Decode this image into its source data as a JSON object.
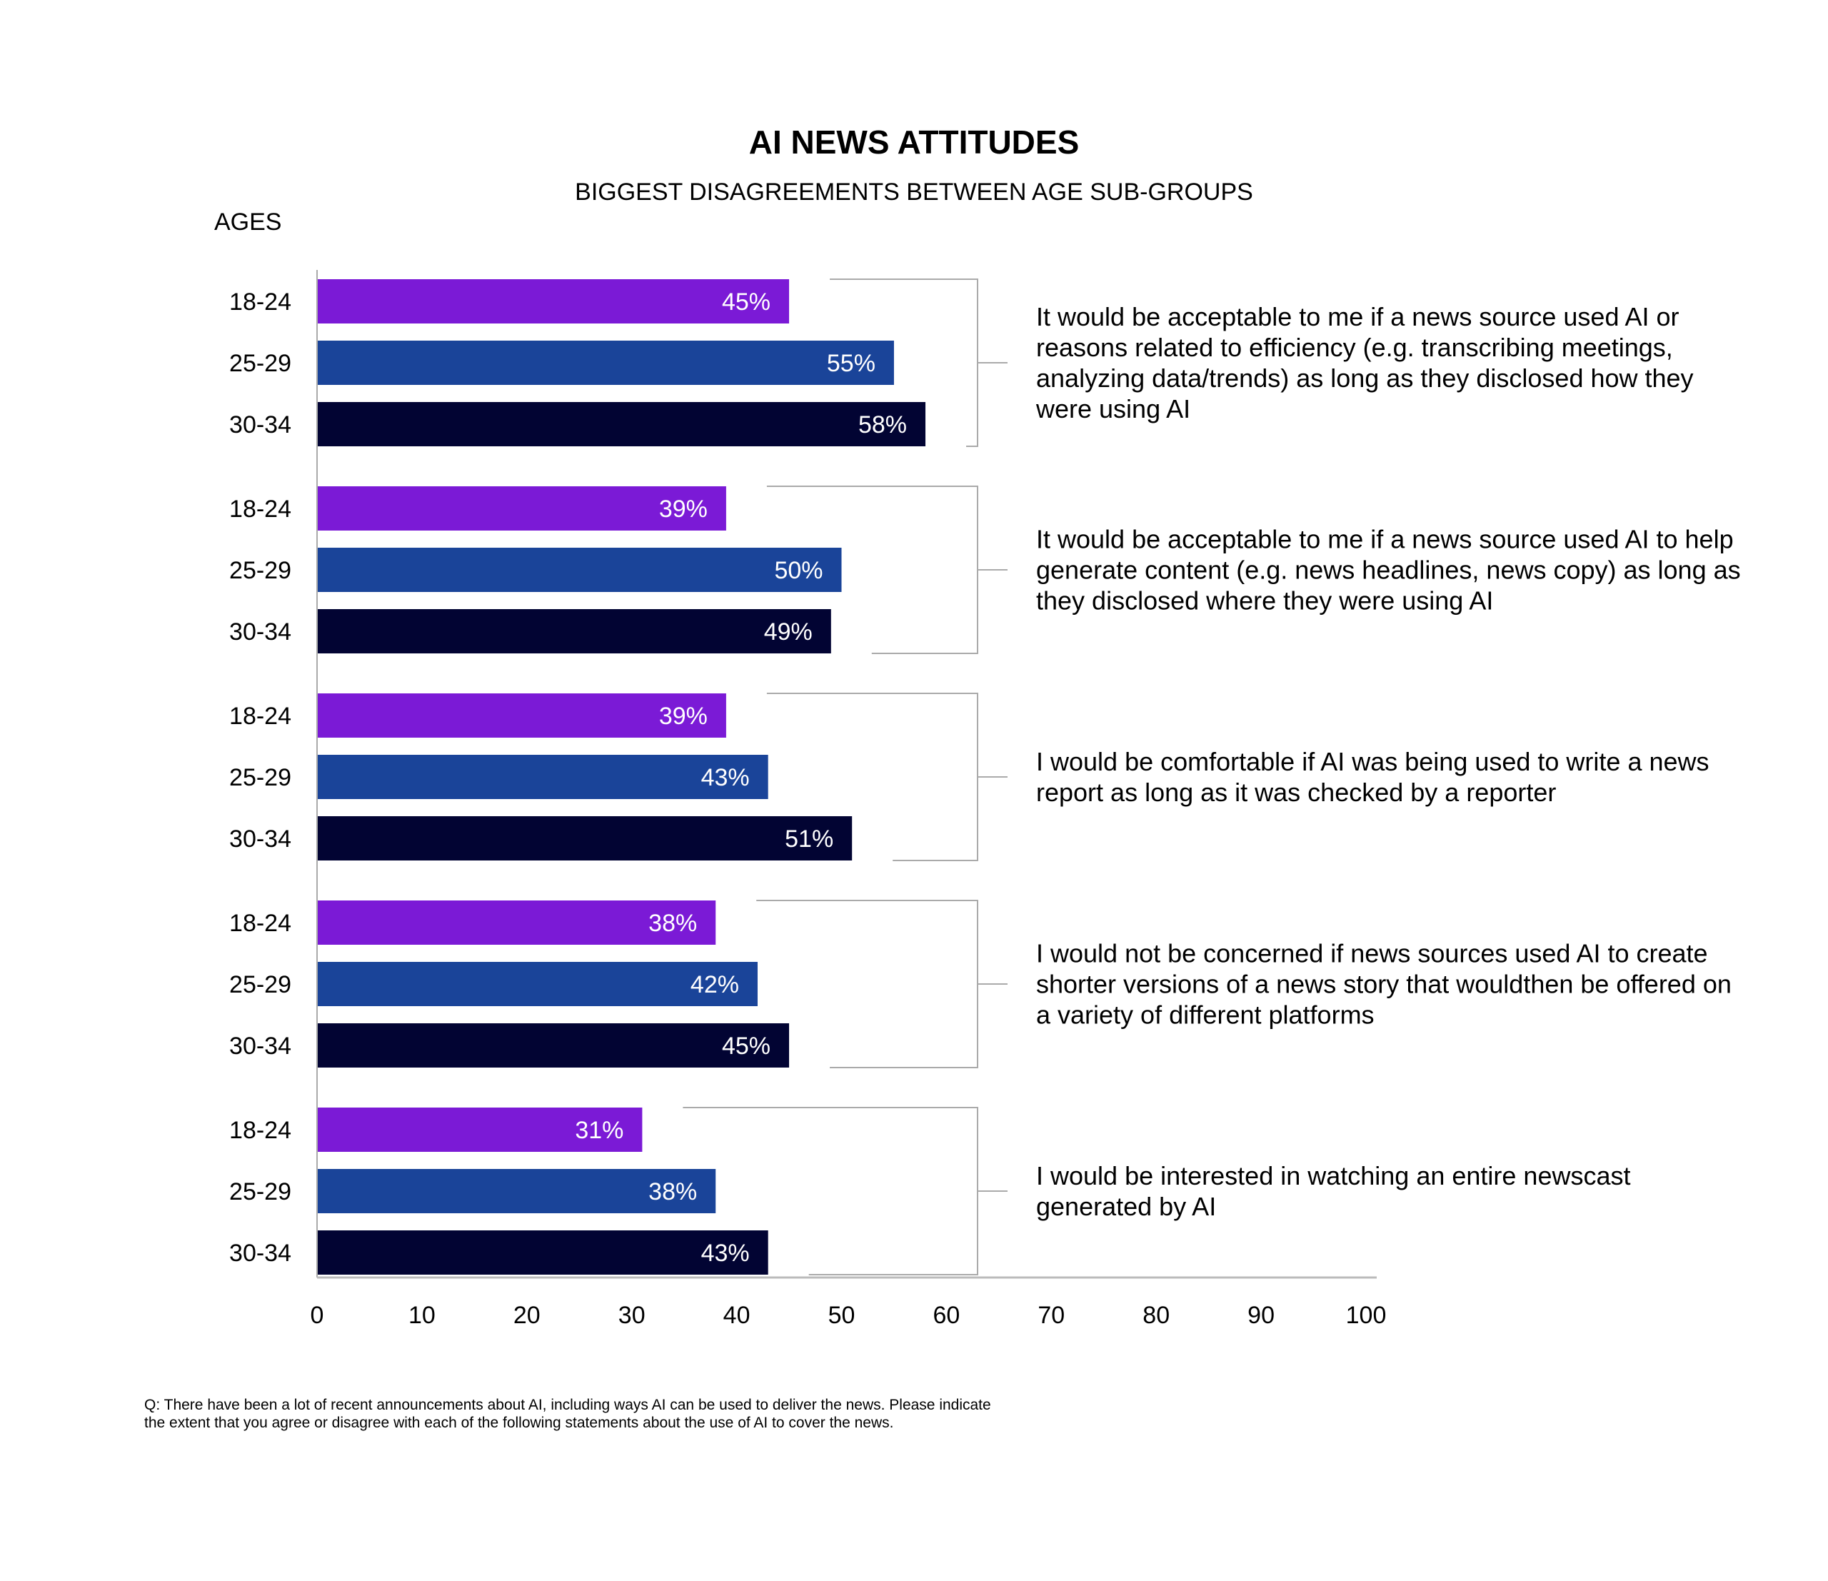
{
  "chart_data": {
    "type": "bar",
    "orientation": "horizontal",
    "title": "AI NEWS ATTITUDES",
    "subtitle": "BIGGEST DISAGREEMENTS BETWEEN AGE SUB-GROUPS",
    "ylabel": "AGES",
    "xlabel": "",
    "xlim": [
      0,
      100
    ],
    "xticks": [
      "0",
      "10",
      "20",
      "30",
      "40",
      "50",
      "60",
      "70",
      "80",
      "90",
      "100"
    ],
    "grid": false,
    "age_groups": [
      "18-24",
      "25-29",
      "30-34"
    ],
    "colors": [
      "#7B1AD6",
      "#1A4499",
      "#020433"
    ],
    "groups": [
      {
        "statement": "It would be acceptable to me if a news source used AI or reasons related to efficiency (e.g. transcribing meetings, analyzing data/trends) as long as they disclosed how they were using AI",
        "values": [
          45,
          55,
          58
        ]
      },
      {
        "statement": "It would be acceptable to me if a news source used AI to help generate content (e.g. news headlines, news copy) as long as they disclosed where they were using AI",
        "values": [
          39,
          50,
          49
        ]
      },
      {
        "statement": "I would be comfortable if AI was being used to write a news report as long as it was checked by a reporter",
        "values": [
          39,
          43,
          51
        ]
      },
      {
        "statement": "I would not be concerned if news sources used AI to create shorter versions of a news story that wouldthen be offered on a variety of different platforms",
        "values": [
          38,
          42,
          45
        ]
      },
      {
        "statement": "I would be interested in watching an entire newscast generated by AI",
        "values": [
          31,
          38,
          43
        ]
      }
    ],
    "value_suffix": "%"
  },
  "footnote": "Q: There have been a lot of recent announcements about AI, including ways AI can be used to deliver the news. Please indicate the extent that you agree or disagree with each of the following statements about the use of AI to cover the news."
}
